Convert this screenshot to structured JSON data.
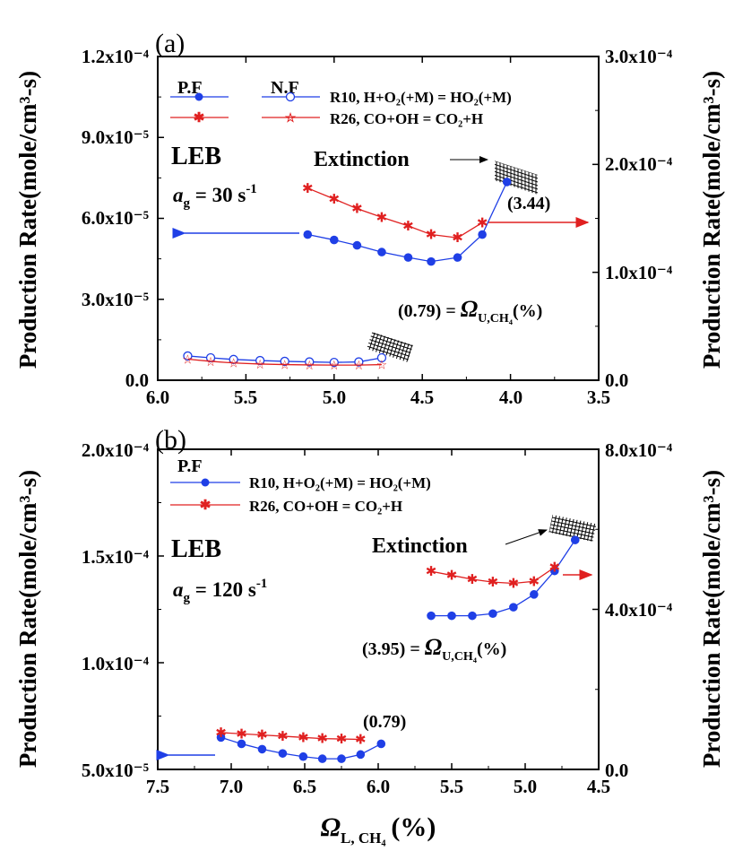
{
  "chart_data": [
    {
      "panel": "(a)",
      "type": "line",
      "xlabel_sym": "Ω",
      "xlabel_sub": "L, CH₄",
      "xlabel_unit": "(%)",
      "xlim": [
        6.0,
        3.5
      ],
      "x_ticks": [
        "6.0",
        "5.5",
        "5.0",
        "4.5",
        "4.0",
        "3.5"
      ],
      "ylabel_left": "Production Rate(mole/cm³-s)",
      "ylabel_right": "Production Rate(mole/cm³-s)",
      "ylim_left": [
        0,
        0.00012
      ],
      "ylim_right": [
        0,
        0.0003
      ],
      "left_ticks": [
        "0.0",
        "3.0x10⁻⁵",
        "6.0x10⁻⁵",
        "9.0x10⁻⁵",
        "1.2x10⁻⁴"
      ],
      "right_ticks": [
        "0.0",
        "1.0x10⁻⁴",
        "2.0x10⁻⁴",
        "3.0x10⁻⁴"
      ],
      "legend_headers": [
        "P.F",
        "N.F"
      ],
      "legend_labels": [
        "R10, H+O₂(+M) = HO₂(+M)",
        "R26, CO+OH = CO₂+H"
      ],
      "series": [
        {
          "name": "R10 P.F",
          "axis": "left",
          "marker": "filled-circle",
          "color": "#1f3fe6",
          "x": [
            5.15,
            5.0,
            4.87,
            4.73,
            4.58,
            4.45,
            4.3,
            4.16,
            4.02
          ],
          "values": [
            5.4e-05,
            5.2e-05,
            5e-05,
            4.75e-05,
            4.55e-05,
            4.4e-05,
            4.55e-05,
            5.4e-05,
            7.35e-05
          ]
        },
        {
          "name": "R26 P.F",
          "axis": "right",
          "marker": "asterisk",
          "color": "#e02020",
          "x": [
            5.15,
            5.0,
            4.87,
            4.73,
            4.58,
            4.45,
            4.3,
            4.16
          ],
          "values": [
            0.000178,
            0.000168,
            0.000159,
            0.000151,
            0.000143,
            0.000135,
            0.000132,
            0.000146
          ]
        },
        {
          "name": "R10 N.F",
          "axis": "left",
          "marker": "open-circle",
          "color": "#1f3fe6",
          "x": [
            5.83,
            5.7,
            5.57,
            5.42,
            5.28,
            5.14,
            5.0,
            4.86,
            4.73
          ],
          "values": [
            9e-06,
            8.3e-06,
            7.7e-06,
            7.3e-06,
            7e-06,
            6.8e-06,
            6.6e-06,
            6.8e-06,
            8.3e-06
          ]
        },
        {
          "name": "R26 N.F",
          "axis": "right",
          "marker": "star",
          "color": "#e02020",
          "x": [
            5.83,
            5.7,
            5.57,
            5.42,
            5.28,
            5.14,
            5.0,
            4.86,
            4.73
          ],
          "values": [
            1.95e-05,
            1.75e-05,
            1.6e-05,
            1.5e-05,
            1.45e-05,
            1.42e-05,
            1.4e-05,
            1.4e-05,
            1.45e-05
          ]
        }
      ],
      "annotations": {
        "leb": "LEB",
        "strain_sym": "a",
        "strain_sub": "g",
        "strain_text": " = 30 s",
        "strain_sup": "-1",
        "extinction": "Extinction",
        "upper_value": "(3.44)",
        "lower_value": "(0.79)",
        "omega_eq": " = ",
        "omega_sym": "Ω",
        "omega_sub": "U,CH₄",
        "omega_unit": "(%)"
      }
    },
    {
      "panel": "(b)",
      "type": "line",
      "xlabel_sym": "Ω",
      "xlabel_sub": "L, CH₄",
      "xlabel_unit": "(%)",
      "xlim": [
        7.5,
        4.5
      ],
      "x_ticks": [
        "7.5",
        "7.0",
        "6.5",
        "6.0",
        "5.5",
        "5.0",
        "4.5"
      ],
      "ylabel_left": "Production Rate(mole/cm³-s)",
      "ylabel_right": "Production Rate(mole/cm³-s)",
      "ylim_left": [
        5e-05,
        0.0002
      ],
      "ylim_right": [
        0,
        0.0008
      ],
      "left_ticks": [
        "5.0x10⁻⁵",
        "1.0x10⁻⁴",
        "1.5x10⁻⁴",
        "2.0x10⁻⁴"
      ],
      "right_ticks": [
        "0.0",
        "4.0x10⁻⁴",
        "8.0x10⁻⁴"
      ],
      "legend_headers": [
        "P.F"
      ],
      "legend_labels": [
        "R10, H+O₂(+M) = HO₂(+M)",
        "R26, CO+OH = CO₂+H"
      ],
      "series": [
        {
          "name": "R10 P.F (Ω_L branch)",
          "axis": "left",
          "marker": "filled-circle",
          "color": "#1f3fe6",
          "x": [
            7.07,
            6.93,
            6.79,
            6.65,
            6.51,
            6.38,
            6.25,
            6.12,
            5.98
          ],
          "values": [
            6.5e-05,
            6.2e-05,
            5.95e-05,
            5.75e-05,
            5.6e-05,
            5.5e-05,
            5.5e-05,
            5.7e-05,
            6.2e-05
          ]
        },
        {
          "name": "R26 P.F (Ω_L branch)",
          "axis": "right",
          "marker": "asterisk",
          "color": "#e02020",
          "x": [
            7.07,
            6.93,
            6.79,
            6.65,
            6.51,
            6.38,
            6.25,
            6.12
          ],
          "values": [
            9.2e-05,
            8.9e-05,
            8.6e-05,
            8.3e-05,
            8e-05,
            7.7e-05,
            7.6e-05,
            7.5e-05
          ]
        },
        {
          "name": "R10 P.F (Ω_U branch)",
          "axis": "left",
          "marker": "filled-circle",
          "color": "#1f3fe6",
          "x": [
            5.64,
            5.5,
            5.36,
            5.22,
            5.08,
            4.94,
            4.8,
            4.66
          ],
          "values": [
            0.000122,
            0.000122,
            0.000122,
            0.000123,
            0.000126,
            0.000132,
            0.000143,
            0.0001575
          ]
        },
        {
          "name": "R26 P.F (Ω_U branch)",
          "axis": "right",
          "marker": "asterisk",
          "color": "#e02020",
          "x": [
            5.64,
            5.5,
            5.36,
            5.22,
            5.08,
            4.94,
            4.8
          ],
          "values": [
            0.000495,
            0.000485,
            0.000475,
            0.000468,
            0.000465,
            0.00047,
            0.000505
          ]
        }
      ],
      "annotations": {
        "leb": "LEB",
        "strain_sym": "a",
        "strain_sub": "g",
        "strain_text": " = 120 s",
        "strain_sup": "-1",
        "extinction": "Extinction",
        "upper_value": "(3.95)",
        "lower_value": "(0.79)",
        "omega_eq": " = ",
        "omega_sym": "Ω",
        "omega_sub": "U,CH₄",
        "omega_unit": "(%)"
      }
    }
  ]
}
